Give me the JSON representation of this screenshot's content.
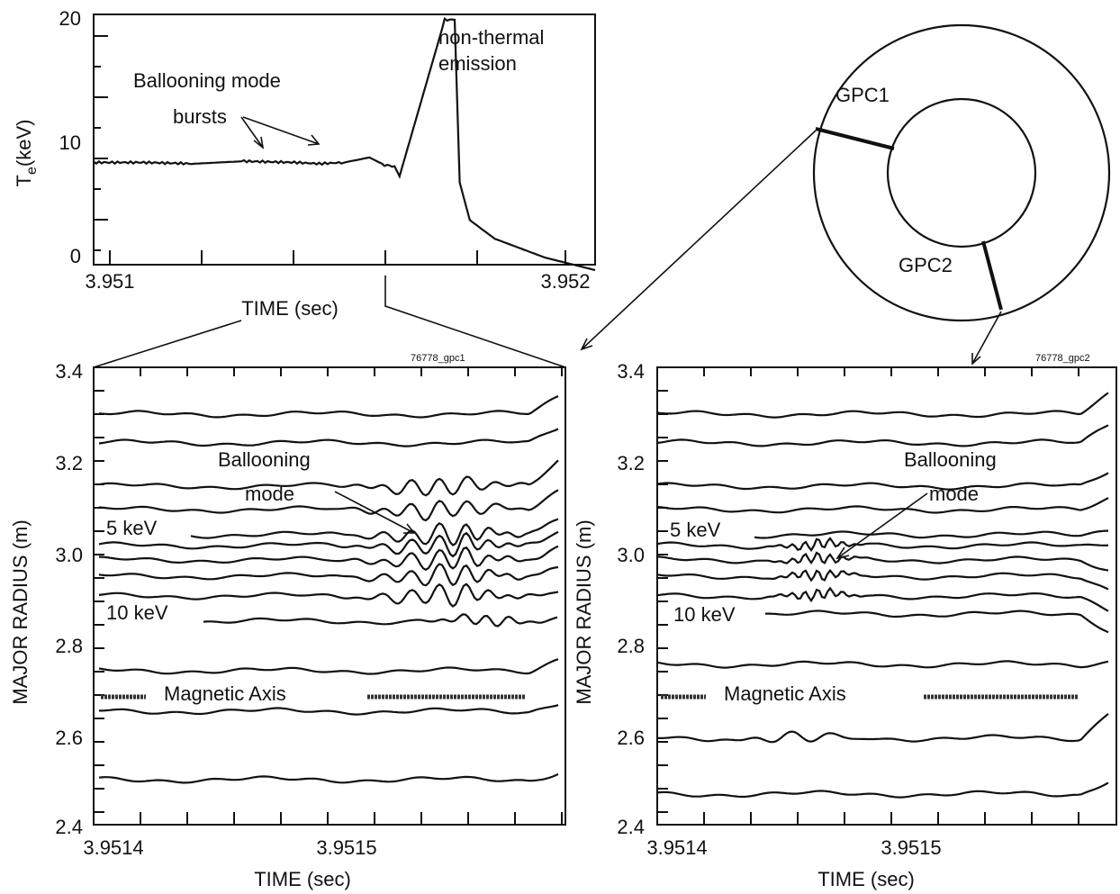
{
  "top_panel": {
    "ylabel": "T",
    "ylabel_sub": "e",
    "ylabel_unit": "(keV)",
    "xlabel": "TIME (sec)",
    "yticks": [
      "20",
      "10",
      "0"
    ],
    "xticks": [
      "3.951",
      "3.952"
    ],
    "annotation_bursts_line1": "Ballooning mode",
    "annotation_bursts_line2": "bursts",
    "annotation_nonthermal_line1": "non-thermal",
    "annotation_nonthermal_line2": "emission"
  },
  "ring": {
    "gpc1": "GPC1",
    "gpc2": "GPC2"
  },
  "left_panel": {
    "id": "76778_gpc1",
    "ylabel": "MAJOR RADIUS (m)",
    "xlabel": "TIME (sec)",
    "yticks": [
      "3.4",
      "3.2",
      "3.0",
      "2.8",
      "2.6",
      "2.4"
    ],
    "xticks": [
      "3.9514",
      "3.9515"
    ],
    "annotation_mode_line1": "Ballooning",
    "annotation_mode_line2": "mode",
    "label_5kev": "5 keV",
    "label_10kev": "10 keV",
    "label_axis": "Magnetic Axis"
  },
  "right_panel": {
    "id": "76778_gpc2",
    "ylabel": "MAJOR RADIUS (m)",
    "xlabel": "TIME (sec)",
    "yticks": [
      "3.4",
      "3.2",
      "3.0",
      "2.8",
      "2.6",
      "2.4"
    ],
    "xticks": [
      "3.9514",
      "3.9515"
    ],
    "annotation_mode_line1": "Ballooning",
    "annotation_mode_line2": "mode",
    "label_5kev": "5 keV",
    "label_10kev": "10 keV",
    "label_axis": "Magnetic Axis"
  },
  "chart_data": [
    {
      "type": "line",
      "panel": "top",
      "xlabel": "TIME (sec)",
      "ylabel": "Te(keV)",
      "xlim": [
        3.951,
        3.952
      ],
      "ylim": [
        0,
        20
      ],
      "series": [
        {
          "x": [
            3.951,
            3.9511,
            3.9512,
            3.9513,
            3.9514,
            3.95145,
            3.9515,
            3.95155,
            3.95158,
            3.9516,
            3.95161,
            3.9517,
            3.95172,
            3.95173,
            3.95175,
            3.9518,
            3.9519,
            3.952
          ],
          "y": [
            8.6,
            8.6,
            8.5,
            8.7,
            8.6,
            8.5,
            8.6,
            9.0,
            8.4,
            8.3,
            7.5,
            20,
            20,
            7.0,
            4.0,
            2.5,
            1.0,
            0.0
          ]
        }
      ]
    },
    {
      "type": "line",
      "panel": "left",
      "xlabel": "TIME (sec)",
      "ylabel": "MAJOR RADIUS (m)",
      "ylim": [
        2.4,
        3.4
      ],
      "xticks": [
        "3.9514",
        "3.9515"
      ]
    },
    {
      "type": "line",
      "panel": "right",
      "xlabel": "TIME (sec)",
      "ylabel": "MAJOR RADIUS (m)",
      "ylim": [
        2.4,
        3.4
      ],
      "xticks": [
        "3.9514",
        "3.9515"
      ]
    }
  ]
}
